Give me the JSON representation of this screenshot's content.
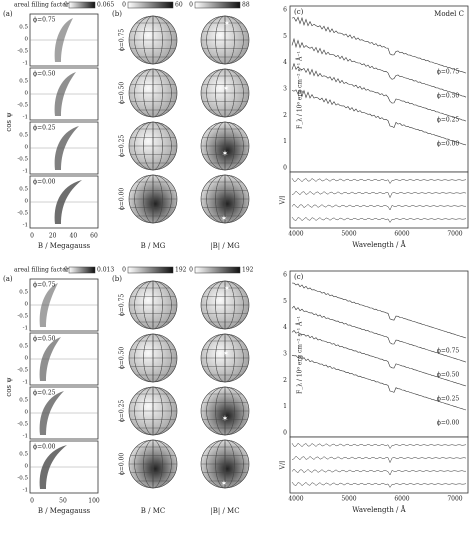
{
  "halves": [
    {
      "a": {
        "label": "(a)",
        "colorbar_title": "areal filling factor",
        "colorbar_ticks": [
          "0",
          "0.065"
        ],
        "phases": [
          "ϕ=0.75",
          "ϕ=0.50",
          "ϕ=0.25",
          "ϕ=0.00"
        ],
        "y_label": "cos ψ",
        "y_ticks": [
          "0.5",
          "0",
          "-0.5",
          "-1"
        ],
        "x_label": "B / Megagauss",
        "x_ticks": [
          "0",
          "20",
          "40",
          "60"
        ]
      },
      "b": {
        "label": "(b)",
        "colorbar_left": [
          "0",
          "60"
        ],
        "colorbar_right": [
          "0",
          "88"
        ],
        "phases": [
          "ϕ=0.75",
          "ϕ=0.50",
          "ϕ=0.25",
          "ϕ=0.00"
        ],
        "x_labels": [
          "B / MG",
          "|B| / MG"
        ]
      },
      "c": {
        "label": "(c)",
        "model": "Model C",
        "phases": [
          "ϕ=0.75",
          "ϕ=0.50",
          "ϕ=0.25",
          "ϕ=0.00"
        ],
        "y_label": "F_λ / 10⁶ erg cm⁻² s⁻¹ Å⁻¹",
        "y_ticks": [
          "6",
          "5",
          "4",
          "3",
          "2",
          "1",
          "0"
        ],
        "v_label": "V/I",
        "x_label": "Wavelength / Å",
        "x_ticks": [
          "4000",
          "5000",
          "6000",
          "7000"
        ]
      }
    },
    {
      "a": {
        "label": "(a)",
        "colorbar_title": "areal filling factor",
        "colorbar_ticks": [
          "0",
          "0.013"
        ],
        "phases": [
          "ϕ=0.75",
          "ϕ=0.50",
          "ϕ=0.25",
          "ϕ=0.00"
        ],
        "y_label": "cos ψ",
        "y_ticks": [
          "0.5",
          "0",
          "-0.5",
          "-1"
        ],
        "x_label": "B / Megagauss",
        "x_ticks": [
          "0",
          "50",
          "100"
        ]
      },
      "b": {
        "label": "(b)",
        "colorbar_left": [
          "0",
          "192"
        ],
        "colorbar_right": [
          "0",
          "192"
        ],
        "phases": [
          "ϕ=0.75",
          "ϕ=0.50",
          "ϕ=0.25",
          "ϕ=0.00"
        ],
        "x_labels": [
          "B / MC",
          "|B| / MC"
        ]
      },
      "c": {
        "label": "(c)",
        "phases": [
          "ϕ=0.75",
          "ϕ=0.50",
          "ϕ=0.25",
          "ϕ=0.00"
        ],
        "y_label": "F_λ / 10⁶ erg cm⁻² s⁻¹ Å⁻¹",
        "y_ticks": [
          "6",
          "5",
          "4",
          "3",
          "2",
          "1",
          "0"
        ],
        "v_label": "V/I",
        "x_label": "Wavelength / Å",
        "x_ticks": [
          "4000",
          "5000",
          "6000",
          "7000"
        ]
      }
    }
  ]
}
